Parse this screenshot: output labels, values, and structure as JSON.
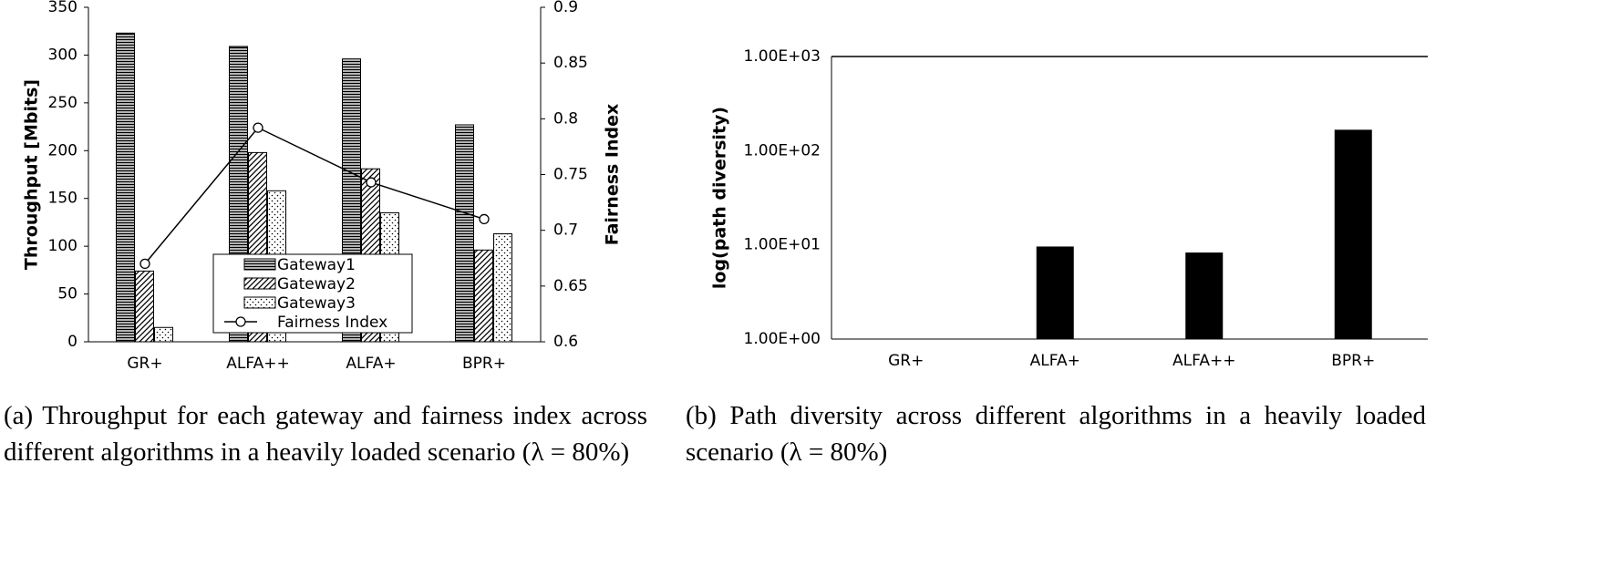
{
  "chart_data": [
    {
      "type": "bar",
      "caption": "(a) Throughput for each gateway and fairness index across different algorithms in a heavily loaded scenario (λ = 80%)",
      "y_label": "Throughput [Mbits]",
      "y2_label": "Fairness Index",
      "categories": [
        "GR+",
        "ALFA++",
        "ALFA+",
        "BPR+"
      ],
      "series": [
        {
          "name": "Gateway1",
          "color": "#000000",
          "pattern": "horizontal",
          "values": [
            323,
            309,
            296,
            227
          ]
        },
        {
          "name": "Gateway2",
          "color": "#000000",
          "pattern": "diagonal",
          "values": [
            74,
            198,
            181,
            96
          ]
        },
        {
          "name": "Gateway3",
          "color": "#000000",
          "pattern": "dots",
          "values": [
            15,
            158,
            135,
            113
          ]
        },
        {
          "name": "Fairness Index",
          "color": "#000000",
          "type": "line",
          "marker": "circle",
          "axis": "y2",
          "values": [
            0.67,
            0.792,
            0.743,
            0.71
          ]
        }
      ],
      "ylim": [
        0,
        350
      ],
      "yticks": [
        0,
        50,
        100,
        150,
        200,
        250,
        300,
        350
      ],
      "y2lim": [
        0.6,
        0.9
      ],
      "y2ticks": [
        0.6,
        0.65,
        0.7,
        0.75,
        0.8,
        0.85,
        0.9
      ],
      "legend": "bottom-center"
    },
    {
      "type": "bar",
      "caption": "(b) Path diversity across different algorithms in a heavily loaded scenario (λ = 80%)",
      "y_label": "log(path diversity)",
      "categories": [
        "GR+",
        "ALFA+",
        "ALFA++",
        "BPR+"
      ],
      "values": [
        1,
        9.5,
        8.2,
        165
      ],
      "color": "#000000",
      "log_scale": true,
      "ylim": [
        1,
        1000
      ],
      "yticks": [
        {
          "value": 1,
          "label": "1.00E+00"
        },
        {
          "value": 10,
          "label": "1.00E+01"
        },
        {
          "value": 100,
          "label": "1.00E+02"
        },
        {
          "value": 1000,
          "label": "1.00E+03"
        }
      ]
    }
  ]
}
